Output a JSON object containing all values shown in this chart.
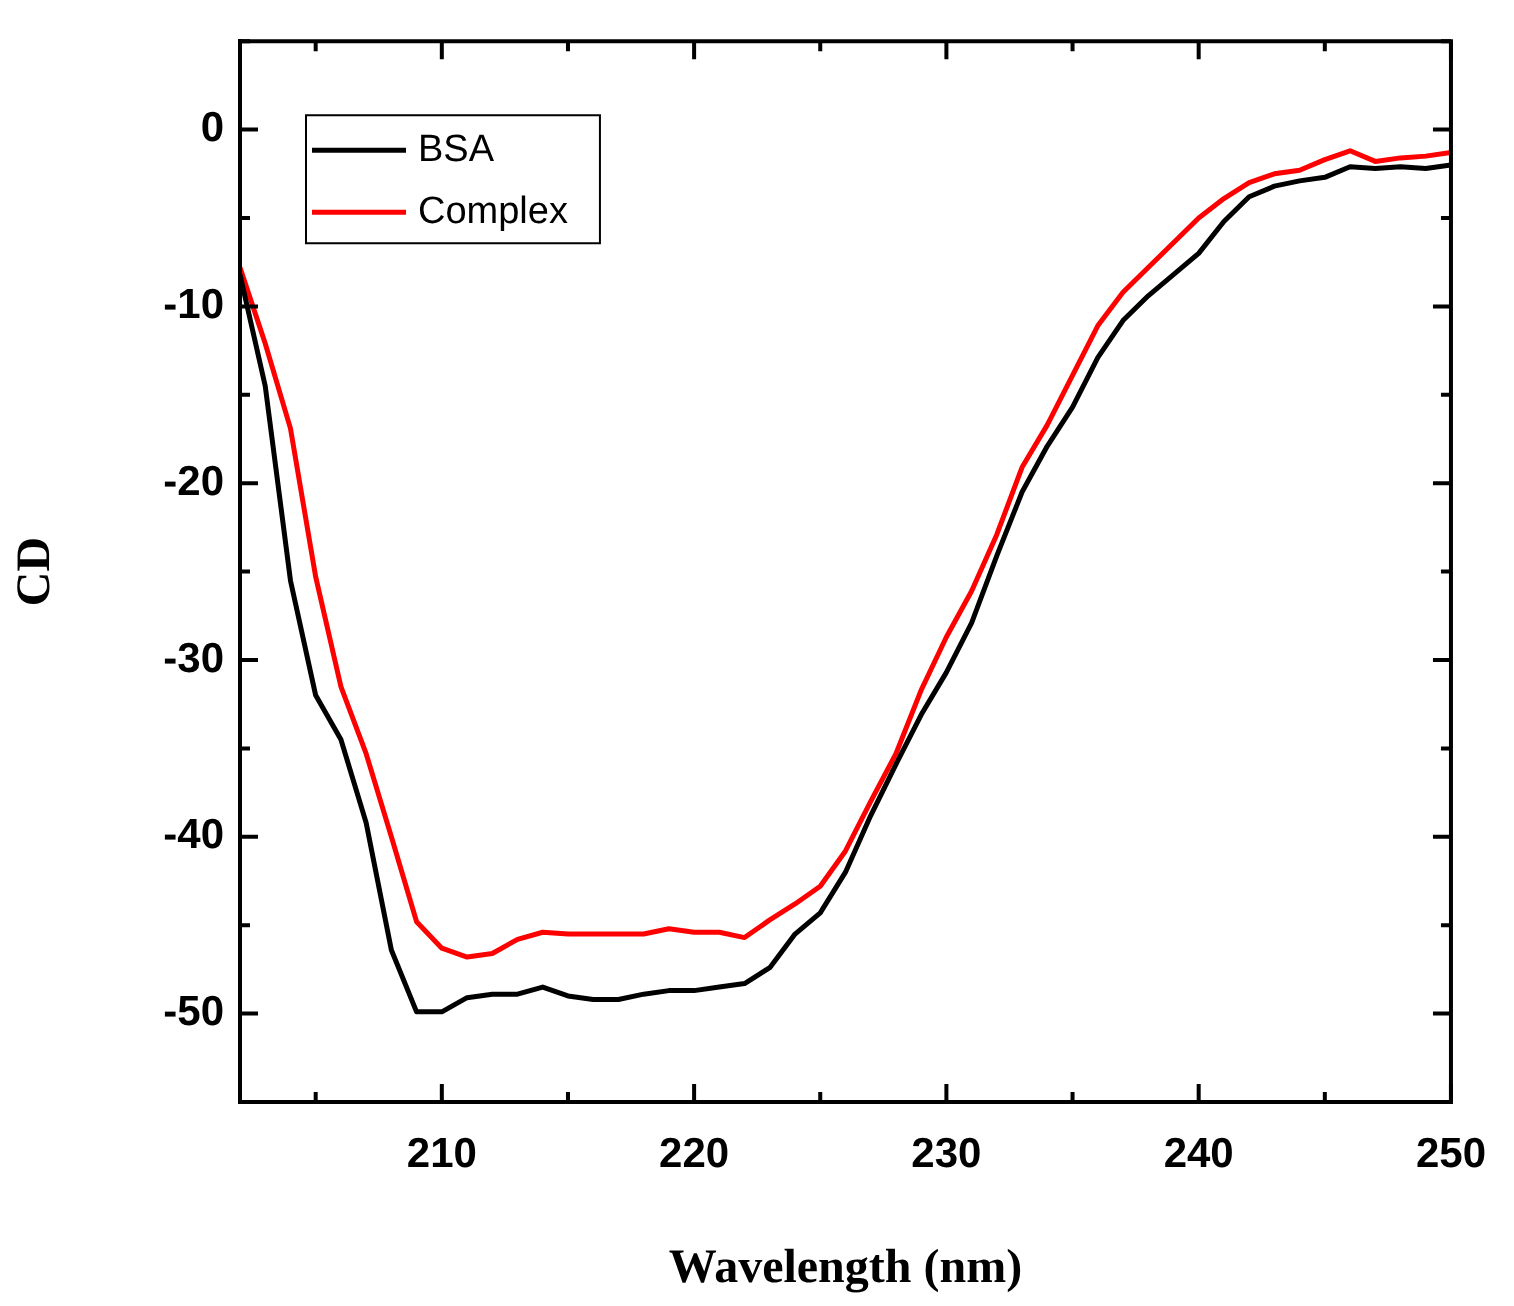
{
  "chart_data": {
    "type": "line",
    "xlabel": "Wavelength (nm)",
    "ylabel": "CD",
    "x": [
      202,
      203,
      204,
      205,
      206,
      207,
      208,
      209,
      210,
      211,
      212,
      213,
      214,
      215,
      216,
      217,
      218,
      219,
      220,
      221,
      222,
      223,
      224,
      225,
      226,
      227,
      228,
      229,
      230,
      231,
      232,
      233,
      234,
      235,
      236,
      237,
      238,
      239,
      240,
      241,
      242,
      243,
      244,
      245,
      246,
      247,
      248,
      249,
      250
    ],
    "series": [
      {
        "name": "BSA",
        "color": "#000000",
        "values": [
          -8.2,
          -14.5,
          -25.5,
          -32,
          -34.5,
          -39.2,
          -46.4,
          -49.9,
          -49.9,
          -49.1,
          -48.9,
          -48.9,
          -48.5,
          -49.0,
          -49.2,
          -49.2,
          -48.9,
          -48.7,
          -48.7,
          -48.5,
          -48.3,
          -47.4,
          -45.5,
          -44.3,
          -42,
          -38.8,
          -35.9,
          -33.1,
          -30.7,
          -27.9,
          -24.1,
          -20.5,
          -17.9,
          -15.7,
          -12.9,
          -10.8,
          -9.4,
          -8.2,
          -7.0,
          -5.2,
          -3.8,
          -3.2,
          -2.9,
          -2.7,
          -2.1,
          -2.2,
          -2.1,
          -2.2,
          -2.0
        ]
      },
      {
        "name": "Complex",
        "color": "#ff0000",
        "values": [
          -7.8,
          -12.1,
          -16.9,
          -25.3,
          -31.5,
          -35.3,
          -40.0,
          -44.8,
          -46.3,
          -46.8,
          -46.6,
          -45.8,
          -45.4,
          -45.5,
          -45.5,
          -45.5,
          -45.5,
          -45.2,
          -45.4,
          -45.4,
          -45.7,
          -44.7,
          -43.8,
          -42.8,
          -40.8,
          -38.0,
          -35.3,
          -31.7,
          -28.7,
          -26.1,
          -22.9,
          -19.1,
          -16.7,
          -13.9,
          -11.1,
          -9.2,
          -7.8,
          -6.4,
          -5.0,
          -3.9,
          -3.0,
          -2.5,
          -2.3,
          -1.7,
          -1.2,
          -1.8,
          -1.6,
          -1.5,
          -1.3
        ]
      }
    ],
    "xlim": [
      202,
      250
    ],
    "xticks": [
      {
        "value": 205,
        "label": null
      },
      210,
      {
        "value": 215,
        "label": null
      },
      220,
      {
        "value": 225,
        "label": null
      },
      230,
      {
        "value": 235,
        "label": null
      },
      240,
      {
        "value": 245,
        "label": null
      },
      250
    ],
    "ylim": [
      -55,
      5
    ],
    "yticks": [
      {
        "value": -55,
        "label": null
      },
      -50,
      {
        "value": -45,
        "label": null
      },
      -40,
      {
        "value": -35,
        "label": null
      },
      -30,
      {
        "value": -25,
        "label": null
      },
      -20,
      {
        "value": -15,
        "label": null
      },
      -10,
      {
        "value": -5,
        "label": null
      },
      0,
      {
        "value": 5,
        "label": null
      }
    ],
    "legend": "top left",
    "grid": false,
    "marker": "none",
    "line_style": "solid"
  }
}
